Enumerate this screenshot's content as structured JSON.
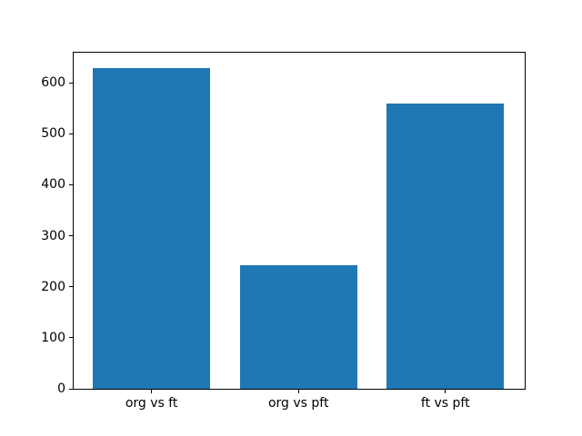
{
  "chart_data": {
    "type": "bar",
    "title": "",
    "xlabel": "",
    "ylabel": "",
    "categories": [
      "org vs ft",
      "org vs pft",
      "ft vs pft"
    ],
    "values": [
      628,
      243,
      560
    ],
    "yticks": [
      0,
      100,
      200,
      300,
      400,
      500,
      600
    ],
    "ylim": [
      0,
      659
    ],
    "xlim": [
      -0.53,
      2.54
    ],
    "bar_width": 0.8,
    "bar_color": "#1f77b4",
    "axes_background": "#ffffff",
    "figure_background": "#ffffff",
    "spine_color": "#000000",
    "grid": false,
    "legend": null
  }
}
